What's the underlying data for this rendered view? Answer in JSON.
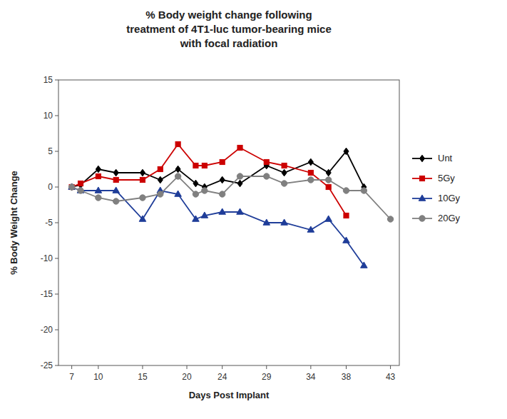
{
  "chart_data": {
    "type": "line",
    "title": "% Body weight change following\ntreatment of 4T1-luc tumor-bearing mice\nwith focal radiation",
    "x_label": "Days Post Implant",
    "y_label": "% Body Weight Change",
    "xlim": [
      5.5,
      44
    ],
    "ylim": [
      -25,
      15
    ],
    "xticks": [
      7,
      10,
      15,
      20,
      24,
      29,
      34,
      38,
      43
    ],
    "yticks": [
      -25,
      -20,
      -15,
      -10,
      -5,
      0,
      5,
      10,
      15
    ],
    "legend": "right",
    "series": [
      {
        "name": "Unt",
        "color": "#000000",
        "marker": "diamond",
        "x": [
          7,
          8,
          10,
          12,
          15,
          17,
          19,
          21,
          22,
          24,
          26,
          29,
          31,
          34,
          36,
          38,
          40
        ],
        "values": [
          0,
          0.3,
          2.5,
          2.0,
          2.0,
          1.0,
          2.5,
          0.5,
          0.0,
          1.0,
          0.5,
          3.0,
          2.0,
          3.5,
          2.0,
          5.0,
          0.0
        ]
      },
      {
        "name": "5Gy",
        "color": "#cc0000",
        "marker": "square",
        "x": [
          7,
          8,
          10,
          12,
          15,
          17,
          19,
          21,
          22,
          24,
          26,
          29,
          31,
          34,
          36,
          38
        ],
        "values": [
          0,
          0.5,
          1.5,
          1.0,
          1.0,
          2.5,
          6.0,
          3.0,
          3.0,
          3.5,
          5.5,
          3.5,
          3.0,
          2.0,
          0.0,
          -4.0
        ]
      },
      {
        "name": "10Gy",
        "color": "#1f3d99",
        "marker": "triangle",
        "x": [
          7,
          8,
          10,
          12,
          15,
          17,
          19,
          21,
          22,
          24,
          26,
          29,
          31,
          34,
          36,
          38,
          40
        ],
        "values": [
          0,
          -0.5,
          -0.5,
          -0.5,
          -4.5,
          -0.5,
          -1.0,
          -4.5,
          -4.0,
          -3.5,
          -3.5,
          -5.0,
          -5.0,
          -6.0,
          -4.5,
          -7.5,
          -11.0
        ]
      },
      {
        "name": "20Gy",
        "color": "#808080",
        "marker": "circle",
        "x": [
          7,
          8,
          10,
          12,
          15,
          17,
          19,
          21,
          22,
          24,
          26,
          29,
          31,
          34,
          36,
          38,
          40,
          43
        ],
        "values": [
          0,
          -0.5,
          -1.5,
          -2.0,
          -1.5,
          -1.0,
          1.5,
          -1.0,
          -0.5,
          -1.0,
          1.5,
          1.5,
          0.5,
          1.0,
          1.0,
          -0.5,
          -0.5,
          -4.5
        ]
      }
    ]
  }
}
